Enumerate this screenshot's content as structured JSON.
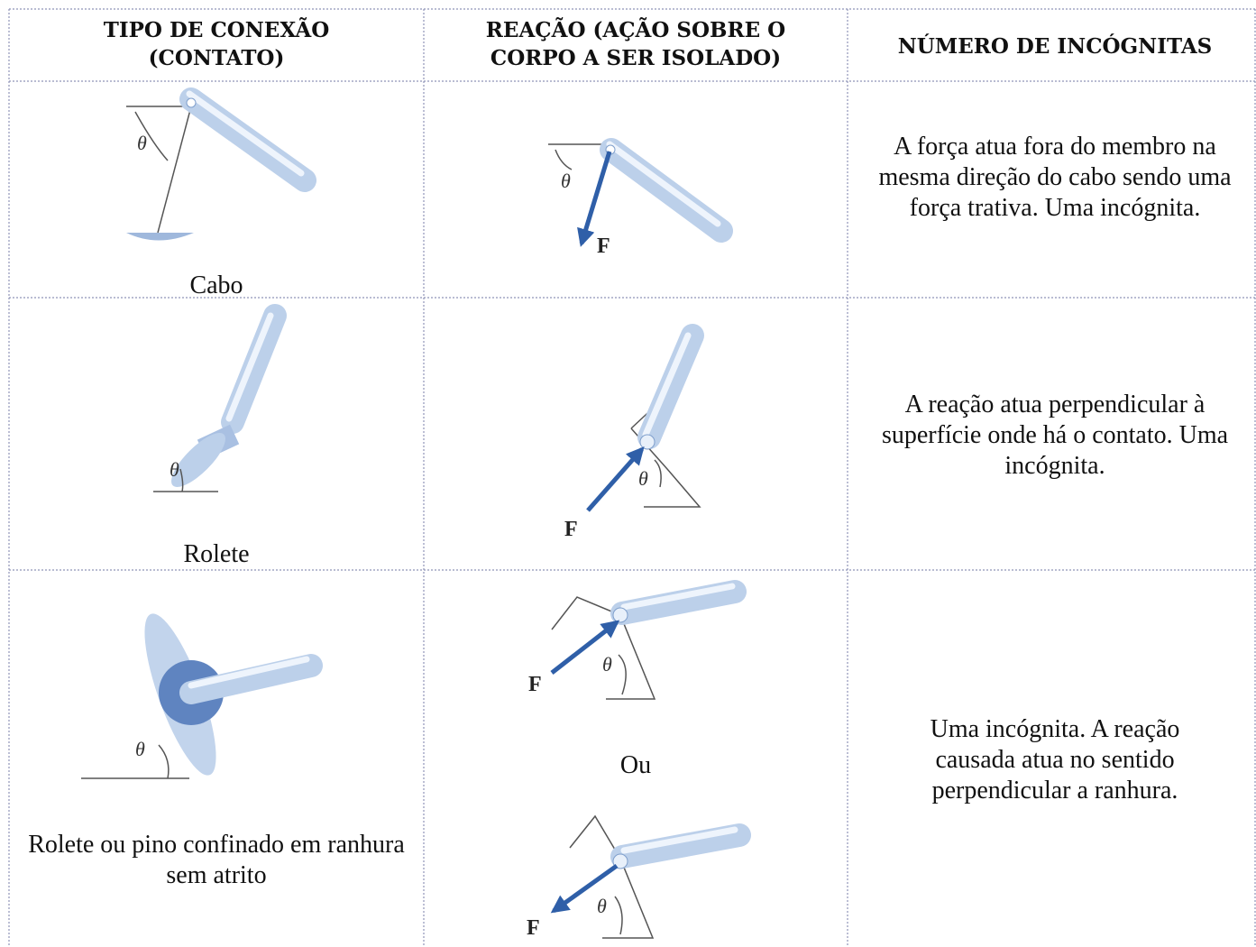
{
  "table": {
    "headers": [
      "TIPO DE CONEXÃO (CONTATO)",
      "REAÇÃO (AÇÃO SOBRE O CORPO A SER ISOLADO)",
      "NÚMERO DE INCÓGNITAS"
    ],
    "rows": [
      {
        "connection": "Cabo",
        "connection_figure": {
          "theta": "θ"
        },
        "reaction_figures": [
          {
            "theta": "θ",
            "force": "F"
          }
        ],
        "unknowns": "A força atua fora do membro na mesma direção do cabo sendo uma força trativa. Uma incógnita."
      },
      {
        "connection": "Rolete",
        "connection_figure": {
          "theta": "θ"
        },
        "reaction_figures": [
          {
            "theta": "θ",
            "force": "F"
          }
        ],
        "unknowns": "A reação atua perpendicular à superfície onde há o contato. Uma incógnita."
      },
      {
        "connection": "Rolete ou pino confinado em ranhura sem atrito",
        "connection_figure": {
          "theta": "θ"
        },
        "reaction_figures": [
          {
            "theta": "θ",
            "force": "F"
          },
          {
            "theta": "θ",
            "force": "F"
          }
        ],
        "separator": "Ou",
        "unknowns": "Uma incógnita. A reação causada atua no sentido perpendicular a ranhura."
      }
    ]
  }
}
